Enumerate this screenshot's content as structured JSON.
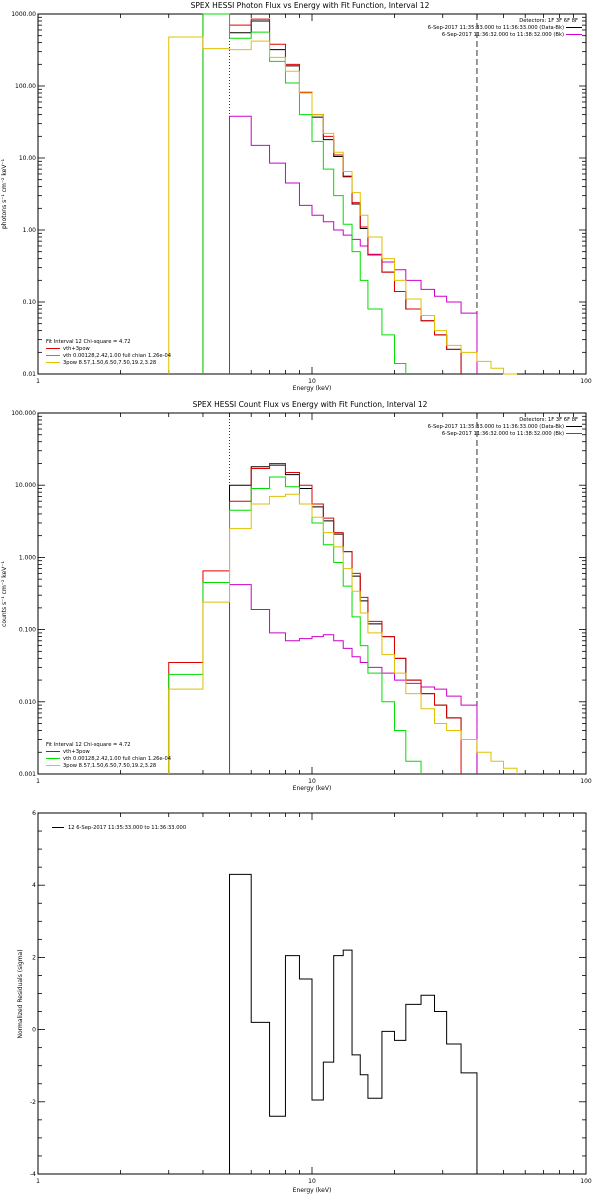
{
  "colors": {
    "black": "#000000",
    "red": "#e00000",
    "green": "#00dd00",
    "yellow": "#e0c000",
    "magenta": "#cc00cc"
  },
  "chart_data": [
    {
      "type": "line",
      "title": "SPEX HESSI Photon Flux vs Energy with Fit Function, Interval 12",
      "xlabel": "Energy (keV)",
      "ylabel": "photons s⁻¹ cm⁻² keV⁻¹",
      "xscale": "log",
      "yscale": "log",
      "xlim": [
        1,
        100
      ],
      "ylim": [
        0.01,
        1000
      ],
      "xticks": [
        {
          "v": 1,
          "t": "1"
        },
        {
          "v": 10,
          "t": "10"
        },
        {
          "v": 100,
          "t": "100"
        }
      ],
      "yticks": [
        {
          "v": 0.01,
          "t": "0.01"
        },
        {
          "v": 0.1,
          "t": "0.10"
        },
        {
          "v": 1,
          "t": "1.00"
        },
        {
          "v": 10,
          "t": "10.00"
        },
        {
          "v": 100,
          "t": "100.00"
        },
        {
          "v": 1000,
          "t": "1000.00"
        }
      ],
      "vlines": [
        {
          "x": 5,
          "style": "dotted",
          "color": "black"
        },
        {
          "x": 40,
          "style": "dashed",
          "color": "black"
        }
      ],
      "bin_edges": [
        3,
        4,
        5,
        6,
        7,
        8,
        9,
        10,
        11,
        12,
        13,
        14,
        15,
        16,
        18,
        20,
        22,
        25,
        28,
        31,
        35,
        40,
        45,
        50,
        56,
        63
      ],
      "series": [
        {
          "name": "6-Sep-2017 11:35:33.000 to 11:36:33.000 (Data-Bk)",
          "color": "black",
          "values": [
            null,
            1300,
            550,
            800,
            320,
            190,
            80,
            37,
            18,
            10.5,
            5.5,
            2.3,
            1.05,
            0.45,
            0.26,
            0.14,
            0.08,
            0.055,
            0.035,
            0.022,
            null,
            null,
            null,
            null,
            null
          ]
        },
        {
          "name": "6-Sep-2017 11:36:32.000 to 11:38:32.000 (Bk)",
          "color": "magenta",
          "values": [
            null,
            null,
            38,
            15,
            8.5,
            4.5,
            2.2,
            1.6,
            1.3,
            1.0,
            0.85,
            0.74,
            0.6,
            0.46,
            0.36,
            0.28,
            0.2,
            0.15,
            0.12,
            0.1,
            0.07,
            null,
            null,
            null,
            null
          ]
        },
        {
          "name": "vth+3pow",
          "color": "red",
          "values": [
            null,
            1400,
            700,
            850,
            380,
            200,
            82,
            40,
            20,
            11,
            5.6,
            2.4,
            1.1,
            0.45,
            0.26,
            0.14,
            0.08,
            0.055,
            0.035,
            0.022,
            null,
            null,
            null,
            null,
            null
          ]
        },
        {
          "name": "vth 0.00128,2.42,1.00  full chian 1.26e-04",
          "color": "green",
          "values": [
            null,
            1100,
            460,
            560,
            220,
            110,
            40,
            17,
            7,
            3.0,
            1.2,
            0.5,
            0.2,
            0.08,
            0.035,
            0.014,
            null,
            null,
            null,
            null,
            null,
            null,
            null,
            null,
            null
          ]
        },
        {
          "name": "3pow 8.57,1.50,6.50,7.50,19.2,3.28",
          "color": "yellow",
          "values": [
            480,
            330,
            320,
            420,
            250,
            160,
            80,
            40,
            22,
            12,
            6.5,
            3.3,
            1.6,
            0.8,
            0.4,
            0.2,
            0.11,
            0.065,
            0.04,
            0.025,
            0.02,
            0.015,
            0.012,
            0.01,
            null
          ]
        }
      ],
      "legend_left": [
        "Fit Interval 12   Chi-square = 4.72",
        "vth+3pow",
        "vth 0.00128,2.42,1.00  full chian 1.26e-04",
        "3pow 8.57,1.50,6.50,7.50,19.2,3.28"
      ],
      "legend_right": [
        "Detectors: 1F 3F 6F 8F",
        "6-Sep-2017 11:35:33.000 to 11:36:33.000 (Data-Bk)",
        "6-Sep-2017 11:36:32.000 to 11:38:32.000 (Bk)"
      ]
    },
    {
      "type": "line",
      "title": "SPEX HESSI Count Flux vs Energy with Fit Function, Interval 12",
      "xlabel": "Energy (keV)",
      "ylabel": "counts s⁻¹ cm⁻² keV⁻¹",
      "xscale": "log",
      "yscale": "log",
      "xlim": [
        1,
        100
      ],
      "ylim": [
        0.001,
        100
      ],
      "xticks": [
        {
          "v": 1,
          "t": "1"
        },
        {
          "v": 10,
          "t": "10"
        },
        {
          "v": 100,
          "t": "100"
        }
      ],
      "yticks": [
        {
          "v": 0.001,
          "t": "0.001"
        },
        {
          "v": 0.01,
          "t": "0.010"
        },
        {
          "v": 0.1,
          "t": "0.100"
        },
        {
          "v": 1,
          "t": "1.000"
        },
        {
          "v": 10,
          "t": "10.000"
        },
        {
          "v": 100,
          "t": "100.000"
        }
      ],
      "vlines": [
        {
          "x": 5,
          "style": "dotted",
          "color": "black"
        },
        {
          "x": 40,
          "style": "dashed",
          "color": "black"
        }
      ],
      "bin_edges": [
        3,
        4,
        5,
        6,
        7,
        8,
        9,
        10,
        11,
        12,
        13,
        14,
        15,
        16,
        18,
        20,
        22,
        25,
        28,
        31,
        35,
        40,
        45,
        50,
        56,
        63
      ],
      "series": [
        {
          "name": "6-Sep-2017 11:35:33.000 to 11:36:33.000 (Data-Bk)",
          "color": "black",
          "values": [
            null,
            null,
            10,
            18,
            19,
            14,
            9,
            5,
            3.2,
            2.1,
            1.2,
            0.55,
            0.25,
            0.12,
            0.08,
            0.04,
            0.02,
            0.013,
            0.009,
            0.006,
            0.003,
            null,
            null,
            null,
            null
          ]
        },
        {
          "name": "6-Sep-2017 11:36:32.000 to 11:38:32.000 (Bk)",
          "color": "magenta",
          "values": [
            null,
            null,
            0.42,
            0.19,
            0.09,
            0.07,
            0.075,
            0.08,
            0.085,
            0.07,
            0.055,
            0.042,
            0.035,
            0.03,
            0.025,
            0.02,
            0.018,
            0.016,
            0.015,
            0.012,
            0.009,
            null,
            null,
            null,
            null
          ]
        },
        {
          "name": "vth+3pow",
          "color": "red",
          "values": [
            0.035,
            0.65,
            6,
            17,
            20,
            15,
            10,
            5.5,
            3.5,
            2.2,
            1.2,
            0.6,
            0.28,
            0.13,
            0.08,
            0.04,
            0.02,
            0.013,
            0.009,
            0.006,
            null,
            null,
            null,
            null,
            null
          ]
        },
        {
          "name": "vth 0.00128,2.42,1.00  full chian 1.26e-04",
          "color": "green",
          "values": [
            0.024,
            0.45,
            4.5,
            9,
            13,
            9.5,
            5.5,
            3,
            1.5,
            0.85,
            0.4,
            0.15,
            0.06,
            0.025,
            0.01,
            0.004,
            0.0015,
            null,
            null,
            null,
            null,
            null,
            null,
            null,
            null
          ]
        },
        {
          "name": "3pow 8.57,1.50,6.50,7.50,19.2,3.28",
          "color": "yellow",
          "values": [
            0.015,
            0.24,
            2.5,
            5.5,
            7,
            7.5,
            5.5,
            3.6,
            2.2,
            1.4,
            0.7,
            0.34,
            0.17,
            0.09,
            0.045,
            0.025,
            0.013,
            0.008,
            0.005,
            0.004,
            0.003,
            0.002,
            0.0015,
            0.0012,
            null
          ]
        }
      ],
      "legend_left": [
        "Fit Interval 12   Chi-square = 4.72",
        "vth+3pow",
        "vth 0.00128,2.42,1.00  full chian 1.26e-04",
        "3pow 8.57,1.50,6.50,7.50,19.2,3.28"
      ],
      "legend_right": [
        "Detectors: 1F 3F 6F 8F",
        "6-Sep-2017 11:35:33.000 to 11:36:33.000 (Data-Bk)",
        "6-Sep-2017 11:36:32.000 to 11:38:32.000 (Bk)"
      ]
    },
    {
      "type": "line",
      "title": "",
      "xlabel": "Energy (keV)",
      "ylabel": "Normalized Residuals (sigma)",
      "xscale": "log",
      "yscale": "linear",
      "xlim": [
        1,
        100
      ],
      "ylim": [
        -4,
        6
      ],
      "xticks": [
        {
          "v": 1,
          "t": "1"
        },
        {
          "v": 10,
          "t": "10"
        },
        {
          "v": 100,
          "t": "100"
        }
      ],
      "yticks": [
        {
          "v": -4,
          "t": "-4"
        },
        {
          "v": -2,
          "t": "-2"
        },
        {
          "v": 0,
          "t": "0"
        },
        {
          "v": 2,
          "t": "2"
        },
        {
          "v": 4,
          "t": "4"
        },
        {
          "v": 6,
          "t": "6"
        }
      ],
      "bin_edges": [
        5,
        6,
        7,
        8,
        9,
        10,
        11,
        12,
        13,
        14,
        15,
        16,
        18,
        20,
        22,
        25,
        28,
        31,
        35,
        40
      ],
      "series": [
        {
          "name": "12  6-Sep-2017 11:35:33.000 to 11:36:33.000",
          "color": "black",
          "values": [
            4.3,
            0.2,
            -2.4,
            2.05,
            1.4,
            -1.95,
            -0.9,
            2.05,
            2.2,
            -0.7,
            -1.25,
            -1.9,
            -0.05,
            -0.3,
            0.7,
            0.95,
            0.5,
            -0.4,
            -1.2
          ]
        }
      ],
      "legend_left": [
        "12  6-Sep-2017 11:35:33.000 to 11:36:33.000"
      ]
    }
  ]
}
